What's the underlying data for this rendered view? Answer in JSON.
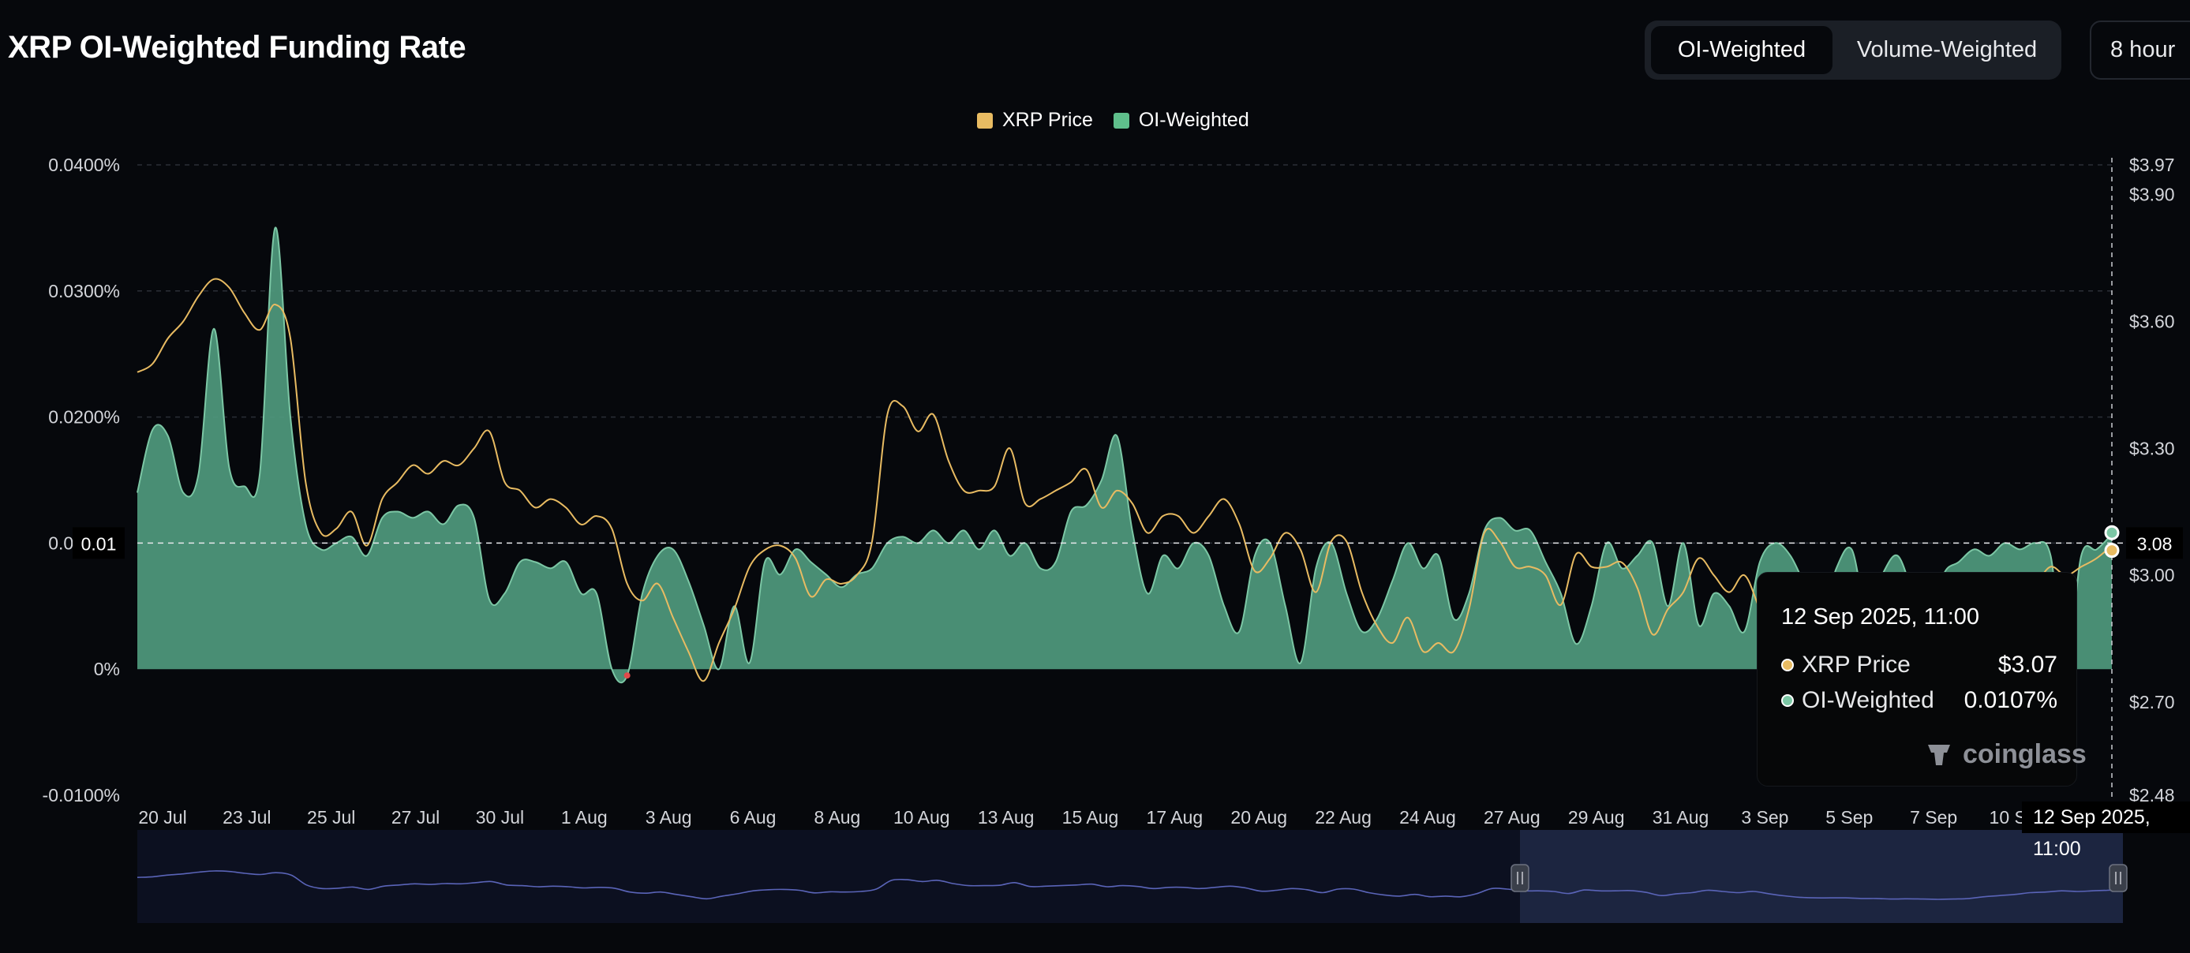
{
  "header": {
    "title": "XRP OI-Weighted Funding Rate",
    "toggle": [
      {
        "label": "OI-Weighted",
        "active": true
      },
      {
        "label": "Volume-Weighted",
        "active": false
      }
    ],
    "period": "8 hour",
    "period_icon": "up-down-chevron-icon"
  },
  "colors": {
    "background": "#06080c",
    "price_line": "#e8bb62",
    "funding_fill": "#4f9a7e",
    "funding_line": "#7cc7a5",
    "negative": "#e04a4a",
    "navigator": "#5a64b8"
  },
  "chart_data": {
    "type": "area",
    "title": "XRP OI-Weighted Funding Rate",
    "legend_position": "top-center",
    "grid": true,
    "x_ticks": [
      "20 Jul",
      "23 Jul",
      "25 Jul",
      "27 Jul",
      "30 Jul",
      "1 Aug",
      "3 Aug",
      "6 Aug",
      "8 Aug",
      "10 Aug",
      "13 Aug",
      "15 Aug",
      "17 Aug",
      "20 Aug",
      "22 Aug",
      "24 Aug",
      "27 Aug",
      "29 Aug",
      "31 Aug",
      "3 Sep",
      "5 Sep",
      "7 Sep",
      "10 Sep"
    ],
    "left_axis": {
      "ylim": [
        -0.01,
        0.04
      ],
      "ticks": [
        "0.0400%",
        "0.0300%",
        "0.0200%",
        "0.0100%",
        "0%",
        "-0.0100%"
      ],
      "unit": "%"
    },
    "right_axis": {
      "ylim": [
        2.48,
        3.97
      ],
      "ticks": [
        "$3.97",
        "$3.90",
        "$3.60",
        "$3.30",
        "$3.00",
        "$2.70",
        "$2.48"
      ],
      "tick_values": [
        3.97,
        3.9,
        3.6,
        3.3,
        3.0,
        2.7,
        2.48
      ]
    },
    "series": [
      {
        "name": "XRP Price",
        "axis": "right",
        "values": [
          3.48,
          3.5,
          3.56,
          3.6,
          3.66,
          3.7,
          3.68,
          3.62,
          3.58,
          3.64,
          3.56,
          3.22,
          3.1,
          3.11,
          3.15,
          3.07,
          3.18,
          3.22,
          3.26,
          3.24,
          3.27,
          3.26,
          3.3,
          3.34,
          3.22,
          3.2,
          3.16,
          3.18,
          3.16,
          3.12,
          3.14,
          3.11,
          2.98,
          2.94,
          2.98,
          2.9,
          2.82,
          2.75,
          2.84,
          2.92,
          3.02,
          3.06,
          3.07,
          3.04,
          2.95,
          2.99,
          2.98,
          3.0,
          3.08,
          3.38,
          3.4,
          3.34,
          3.38,
          3.27,
          3.2,
          3.2,
          3.21,
          3.3,
          3.17,
          3.18,
          3.2,
          3.22,
          3.25,
          3.16,
          3.2,
          3.17,
          3.1,
          3.14,
          3.14,
          3.1,
          3.14,
          3.18,
          3.12,
          3.01,
          3.04,
          3.1,
          3.06,
          2.96,
          3.08,
          3.08,
          2.96,
          2.88,
          2.84,
          2.9,
          2.82,
          2.84,
          2.82,
          2.92,
          3.1,
          3.08,
          3.02,
          3.02,
          3.0,
          2.93,
          3.05,
          3.02,
          3.02,
          3.03,
          2.97,
          2.86,
          2.92,
          2.96,
          3.04,
          3.0,
          2.96,
          3.0,
          2.92,
          2.85,
          2.8,
          2.78,
          2.78,
          2.78,
          2.76,
          2.76,
          2.74,
          2.75,
          2.74,
          2.73,
          2.74,
          2.76,
          2.82,
          2.86,
          2.9,
          2.96,
          2.98,
          3.02,
          3.0,
          3.02,
          3.04,
          3.07
        ]
      },
      {
        "name": "OI-Weighted",
        "axis": "left",
        "values": [
          0.014,
          0.019,
          0.0185,
          0.014,
          0.0155,
          0.027,
          0.016,
          0.0145,
          0.0155,
          0.035,
          0.02,
          0.0115,
          0.0095,
          0.01,
          0.0105,
          0.009,
          0.012,
          0.0125,
          0.012,
          0.0125,
          0.0115,
          0.013,
          0.012,
          0.0055,
          0.006,
          0.0085,
          0.0085,
          0.008,
          0.0085,
          0.006,
          0.006,
          0.0,
          -0.0005,
          0.006,
          0.009,
          0.0095,
          0.007,
          0.0035,
          0.0,
          0.005,
          0.0005,
          0.0085,
          0.0075,
          0.0095,
          0.0085,
          0.0075,
          0.0065,
          0.0075,
          0.008,
          0.01,
          0.0105,
          0.01,
          0.011,
          0.01,
          0.011,
          0.0095,
          0.011,
          0.009,
          0.01,
          0.008,
          0.0085,
          0.0125,
          0.013,
          0.015,
          0.0185,
          0.011,
          0.006,
          0.009,
          0.008,
          0.01,
          0.009,
          0.005,
          0.003,
          0.009,
          0.01,
          0.005,
          0.0005,
          0.008,
          0.01,
          0.006,
          0.003,
          0.004,
          0.007,
          0.01,
          0.008,
          0.009,
          0.004,
          0.006,
          0.011,
          0.012,
          0.011,
          0.011,
          0.0085,
          0.006,
          0.002,
          0.005,
          0.01,
          0.008,
          0.009,
          0.01,
          0.005,
          0.01,
          0.0035,
          0.006,
          0.005,
          0.003,
          0.0085,
          0.01,
          0.009,
          0.0065,
          0.004,
          0.008,
          0.0095,
          0.0045,
          0.0075,
          0.009,
          0.006,
          0.003,
          0.0075,
          0.0085,
          0.0095,
          0.009,
          0.01,
          0.0095,
          0.01,
          0.009,
          0.0,
          0.009,
          0.0095,
          0.0107
        ]
      }
    ],
    "tooltip": {
      "date": "12 Sep 2025, 11:00",
      "rows": [
        {
          "label": "XRP Price",
          "value": "$3.07",
          "color": "#e8bb62"
        },
        {
          "label": "OI-Weighted",
          "value": "0.0107%",
          "color": "#7cc7a5"
        }
      ]
    },
    "crosshair": {
      "left_label": "0.01",
      "right_label": "3.08",
      "x_label": "12 Sep 2025, 11:00"
    },
    "watermark": "coinglass"
  }
}
